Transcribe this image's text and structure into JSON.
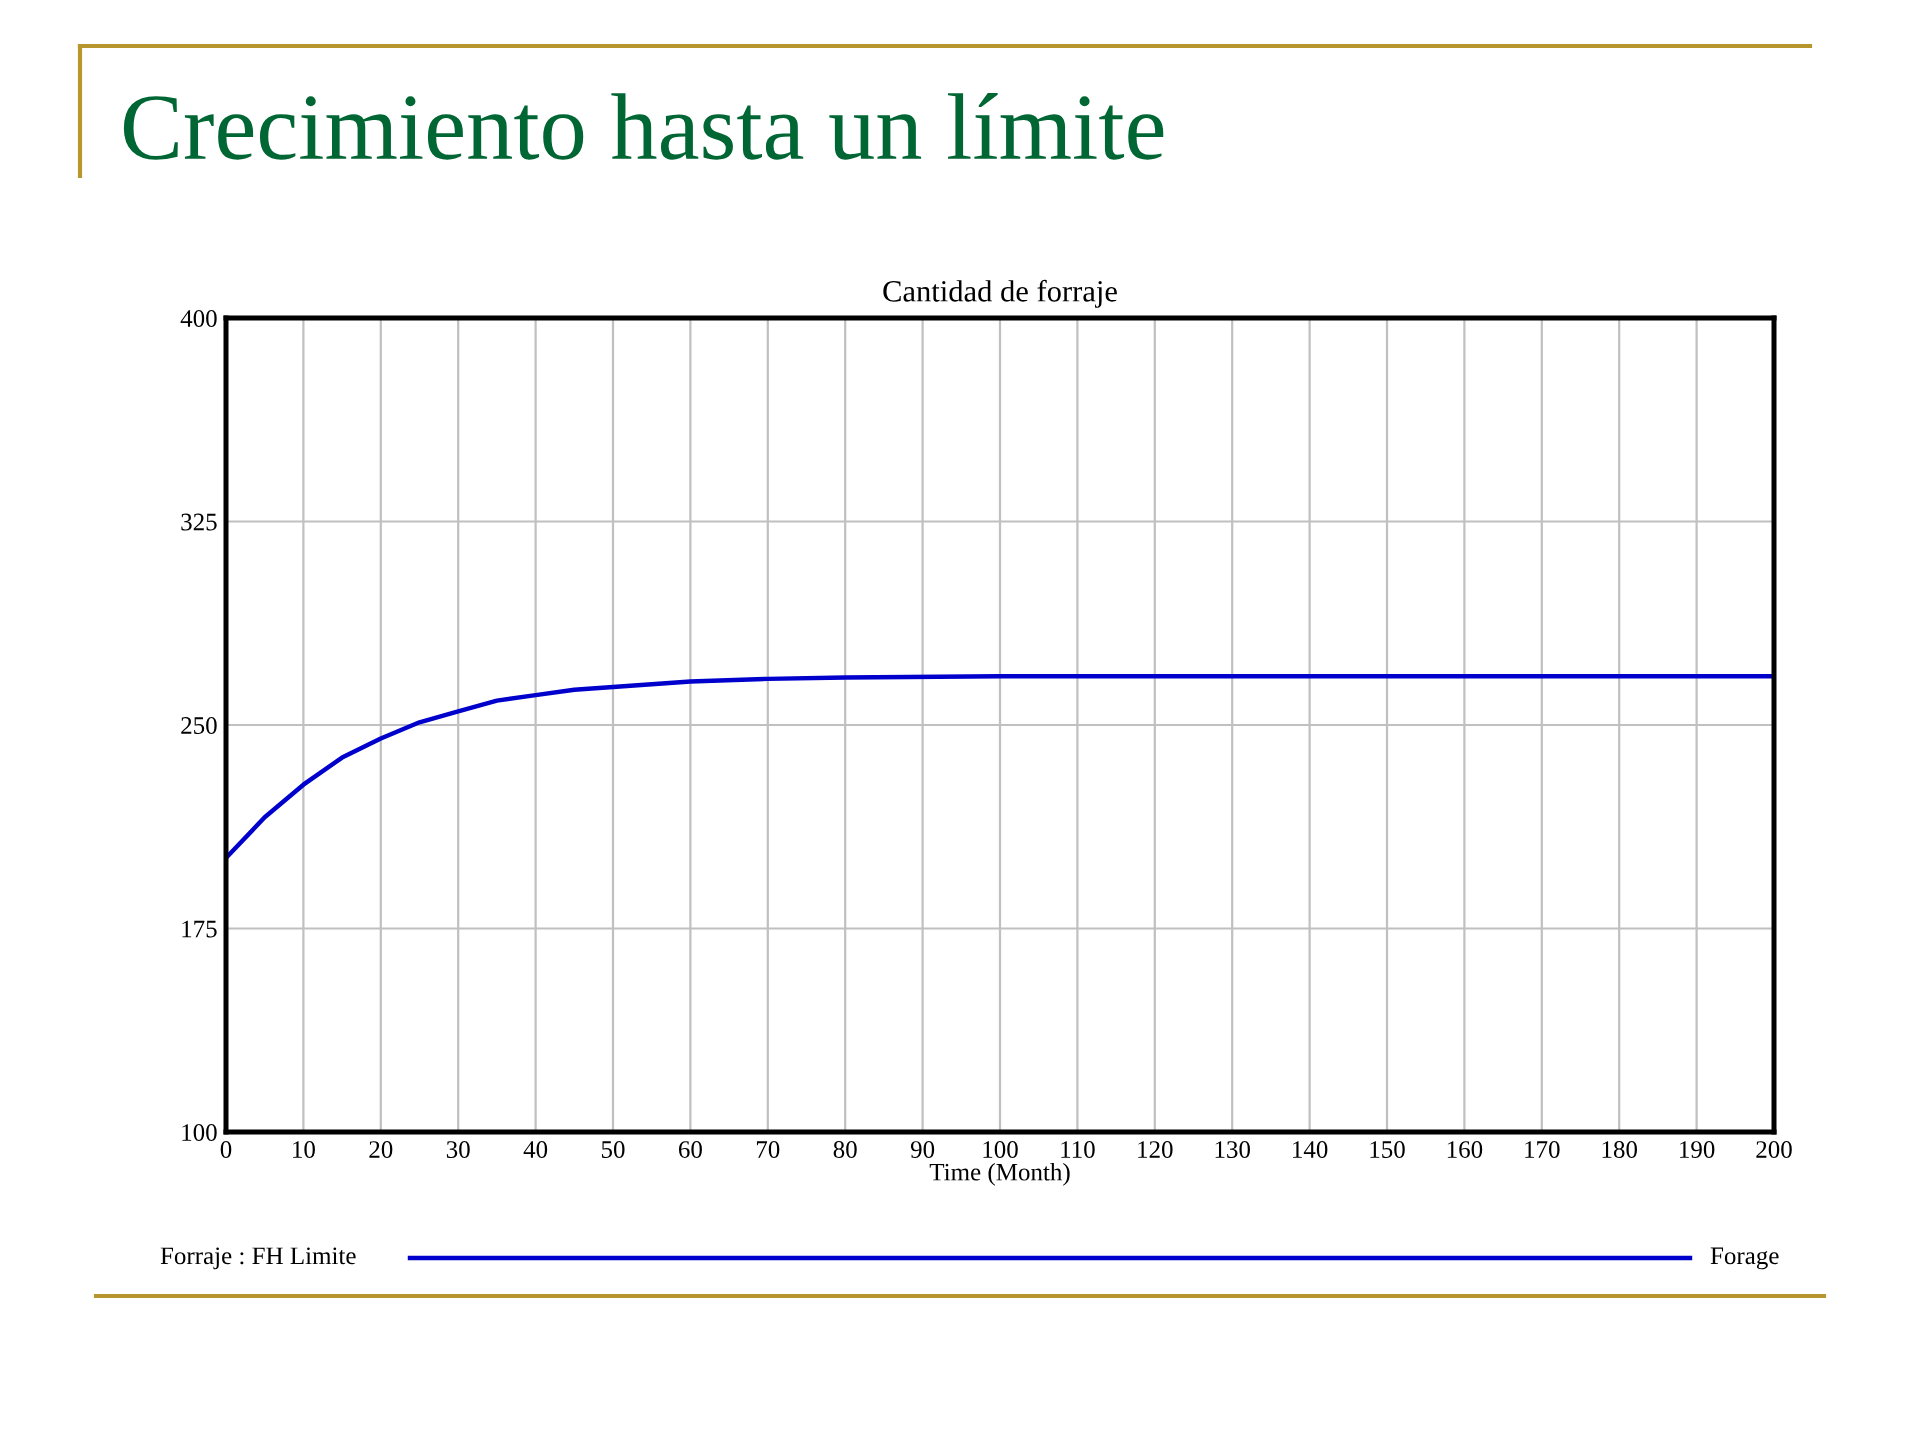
{
  "chart_data": {
    "type": "line",
    "title": "Crecimiento hasta un límite",
    "subtitle": "Cantidad de forraje",
    "xlabel": "Time (Month)",
    "x": [
      0,
      5,
      10,
      15,
      20,
      25,
      30,
      35,
      40,
      45,
      50,
      60,
      70,
      80,
      100,
      120,
      150,
      200
    ],
    "series": [
      {
        "name": "Forraje : FH Limite",
        "color": "#0000cc",
        "values": [
          201,
          216,
          228,
          238,
          245,
          251,
          255,
          259,
          261,
          263,
          264,
          266,
          267,
          267.5,
          268,
          268,
          268,
          268
        ]
      }
    ],
    "annotations": [
      "Forage"
    ],
    "xlim": [
      0,
      200
    ],
    "xticks": [
      0,
      10,
      20,
      30,
      40,
      50,
      60,
      70,
      80,
      90,
      100,
      110,
      120,
      130,
      140,
      150,
      160,
      170,
      180,
      190,
      200
    ],
    "ylim": [
      100,
      400
    ],
    "yticks": [
      100,
      175,
      250,
      325,
      400
    ],
    "grid": true,
    "legend": "bottom",
    "marker": "none",
    "line_style": "solid"
  }
}
